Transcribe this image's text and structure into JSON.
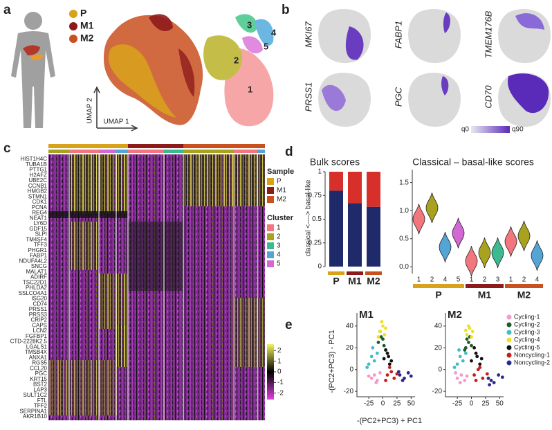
{
  "panel_labels": [
    "a",
    "b",
    "c",
    "d",
    "e"
  ],
  "panel_a": {
    "samples": [
      {
        "name": "P",
        "color": "#d9a21b"
      },
      {
        "name": "M1",
        "color": "#8e1b1b"
      },
      {
        "name": "M2",
        "color": "#c9501f"
      }
    ],
    "cluster_labels": [
      "3",
      "4",
      "2",
      "5",
      "1"
    ],
    "axis_x": "UMAP 1",
    "axis_y": "UMAP 2"
  },
  "panel_b": {
    "genes": [
      "MKI67",
      "FABP1",
      "TMEM176B",
      "PRSS1",
      "PGC",
      "CD70"
    ],
    "scale_low": "q0",
    "scale_high": "q90"
  },
  "panel_c": {
    "genes": [
      "HIST1H4C",
      "TUBA1B",
      "PTTG1",
      "H2AFZ",
      "UBE2C",
      "CCNB1",
      "HMGB2",
      "STMN1",
      "CDK1",
      "PCNA",
      "REG4",
      "NEAT1",
      "LY6D",
      "GDF15",
      "SLPI",
      "TM4SF4",
      "TFF3",
      "PHGR1",
      "FABP1",
      "NDUFA4L2",
      "SNCG",
      "MALAT1",
      "ADIRF",
      "TSC22D1",
      "PHLDA2",
      "SSLCO4A1",
      "ISG20",
      "CD74",
      "PRSS1",
      "PRSS3",
      "CRIP2",
      "CAPS",
      "LCN2",
      "FGFBP1",
      "CTD-2228K2.5",
      "LGALS1",
      "TMSB4X",
      "ANXA1",
      "RGS5",
      "CCL20",
      "PGC",
      "KRT15",
      "BST2",
      "LAP3",
      "SULT1C2",
      "FTL",
      "TFF2",
      "SERPINA1",
      "AKR1B10"
    ],
    "sample_title": "Sample",
    "samples": [
      {
        "name": "P",
        "color": "#d9a21b"
      },
      {
        "name": "M1",
        "color": "#8e1b1b"
      },
      {
        "name": "M2",
        "color": "#c9501f"
      }
    ],
    "cluster_title": "Cluster",
    "clusters": [
      {
        "name": "1",
        "color": "#f2767e"
      },
      {
        "name": "2",
        "color": "#a9a21f"
      },
      {
        "name": "3",
        "color": "#3cba8f"
      },
      {
        "name": "4",
        "color": "#53a5d6"
      },
      {
        "name": "5",
        "color": "#d268d3"
      }
    ],
    "colorbar_ticks": [
      2,
      1,
      0,
      -1,
      -2
    ],
    "colorbar_lim": [
      -2.6,
      2.6
    ]
  },
  "chart_data": [
    {
      "type": "stacked-bar",
      "title": "Bulk scores",
      "ylabel": "classical <----> basal-like",
      "categories": [
        "P",
        "M1",
        "M2"
      ],
      "category_colors": [
        "#d9a21b",
        "#8e1b1b",
        "#c9501f"
      ],
      "series": [
        {
          "color": "#1f2a6b",
          "values": [
            0.8,
            0.67,
            0.63
          ]
        },
        {
          "color": "#d7302a",
          "values": [
            0.2,
            0.33,
            0.37
          ]
        }
      ],
      "ylim": [
        0,
        1
      ],
      "yticks": [
        0,
        0.25,
        0.5,
        0.75,
        1
      ]
    },
    {
      "type": "violin",
      "title": "Classical – basal-like scores",
      "groups": [
        {
          "name": "P",
          "color": "#d9a21b",
          "categories": [
            "1",
            "2",
            "4",
            "5"
          ],
          "values": [
            0.85,
            1.05,
            0.35,
            0.6
          ],
          "colors": [
            "#f2767e",
            "#a9a21f",
            "#53a5d6",
            "#d268d3"
          ]
        },
        {
          "name": "M1",
          "color": "#8e1b1b",
          "categories": [
            "1",
            "2",
            "3"
          ],
          "values": [
            0.1,
            0.25,
            0.25
          ],
          "colors": [
            "#f2767e",
            "#a9a21f",
            "#3cba8f"
          ]
        },
        {
          "name": "M2",
          "color": "#c9501f",
          "categories": [
            "1",
            "2",
            "4"
          ],
          "values": [
            0.45,
            0.55,
            0.2
          ],
          "colors": [
            "#f2767e",
            "#a9a21f",
            "#53a5d6"
          ]
        }
      ],
      "ylim": [
        -0.12,
        1.73
      ],
      "yticks": [
        {
          "value": 0,
          "label": "0.0"
        },
        0.5,
        {
          "value": 1,
          "label": "1.0"
        },
        1.5
      ]
    },
    {
      "type": "scatter",
      "xlabel": "-(PC2+PC3) + PC1",
      "ylabel": "-(PC2+PC3) - PC1",
      "xlim": [
        -46,
        57
      ],
      "ylim": [
        -25,
        52
      ],
      "xticks": [
        -25,
        0,
        25,
        50
      ],
      "yticks": [
        -20,
        0,
        20,
        40
      ],
      "legend": [
        {
          "name": "Cycling-1",
          "color": "#f59ac8"
        },
        {
          "name": "Cycling-2",
          "color": "#1e5b2a"
        },
        {
          "name": "Cycling-3",
          "color": "#40bcc8"
        },
        {
          "name": "Cycling-4",
          "color": "#f0e020"
        },
        {
          "name": "Cycling-5",
          "color": "#111111"
        },
        {
          "name": "Noncycling-1",
          "color": "#c41e1e"
        },
        {
          "name": "Noncycling-2",
          "color": "#2a2a8c"
        }
      ],
      "panels": [
        {
          "title": "M1",
          "color": "#8e1b1b",
          "series": [
            {
              "x": [
                -20,
                -15,
                -10,
                -5,
                -12,
                -25
              ],
              "y": [
                -8,
                -5,
                -10,
                -3,
                -12,
                -6
              ]
            },
            {
              "x": [
                -8,
                -3,
                2,
                -5,
                0,
                5
              ],
              "y": [
                25,
                30,
                22,
                35,
                28,
                18
              ]
            },
            {
              "x": [
                -25,
                -20,
                -15,
                -10,
                -18,
                -28
              ],
              "y": [
                5,
                12,
                8,
                15,
                20,
                2
              ]
            },
            {
              "x": [
                -5,
                0,
                3,
                -2,
                5,
                -8
              ],
              "y": [
                35,
                40,
                32,
                44,
                38,
                30
              ]
            },
            {
              "x": [
                2,
                8,
                12,
                5,
                15,
                10
              ],
              "y": [
                10,
                15,
                5,
                18,
                8,
                12
              ]
            },
            {
              "x": [
                8,
                15,
                20,
                12,
                25,
                5
              ],
              "y": [
                -5,
                -2,
                -8,
                2,
                -4,
                -10
              ]
            },
            {
              "x": [
                30,
                38,
                45,
                35,
                50,
                28
              ],
              "y": [
                -5,
                -8,
                -3,
                -10,
                -6,
                -2
              ]
            }
          ]
        },
        {
          "title": "M2",
          "color": "#c9501f",
          "series": [
            {
              "x": [
                -25,
                -18,
                -12,
                -28,
                -8,
                -20
              ],
              "y": [
                -8,
                -5,
                -10,
                -3,
                -6,
                -12
              ]
            },
            {
              "x": [
                -10,
                -5,
                -8,
                0,
                -3,
                -12
              ],
              "y": [
                20,
                25,
                28,
                22,
                30,
                18
              ]
            },
            {
              "x": [
                -25,
                -20,
                -15,
                -10,
                -22,
                -30
              ],
              "y": [
                5,
                12,
                8,
                15,
                18,
                2
              ]
            },
            {
              "x": [
                -8,
                -3,
                2,
                -5,
                0,
                -10
              ],
              "y": [
                32,
                38,
                35,
                40,
                30,
                36
              ]
            },
            {
              "x": [
                0,
                8,
                15,
                5,
                18,
                10
              ],
              "y": [
                8,
                15,
                5,
                20,
                10,
                12
              ]
            },
            {
              "x": [
                5,
                12,
                20,
                15,
                28,
                8
              ],
              "y": [
                -5,
                0,
                -8,
                2,
                -4,
                -10
              ]
            },
            {
              "x": [
                30,
                40,
                48,
                35,
                55,
                32
              ],
              "y": [
                -8,
                -12,
                -5,
                -10,
                -7,
                -14
              ]
            }
          ]
        }
      ]
    }
  ]
}
